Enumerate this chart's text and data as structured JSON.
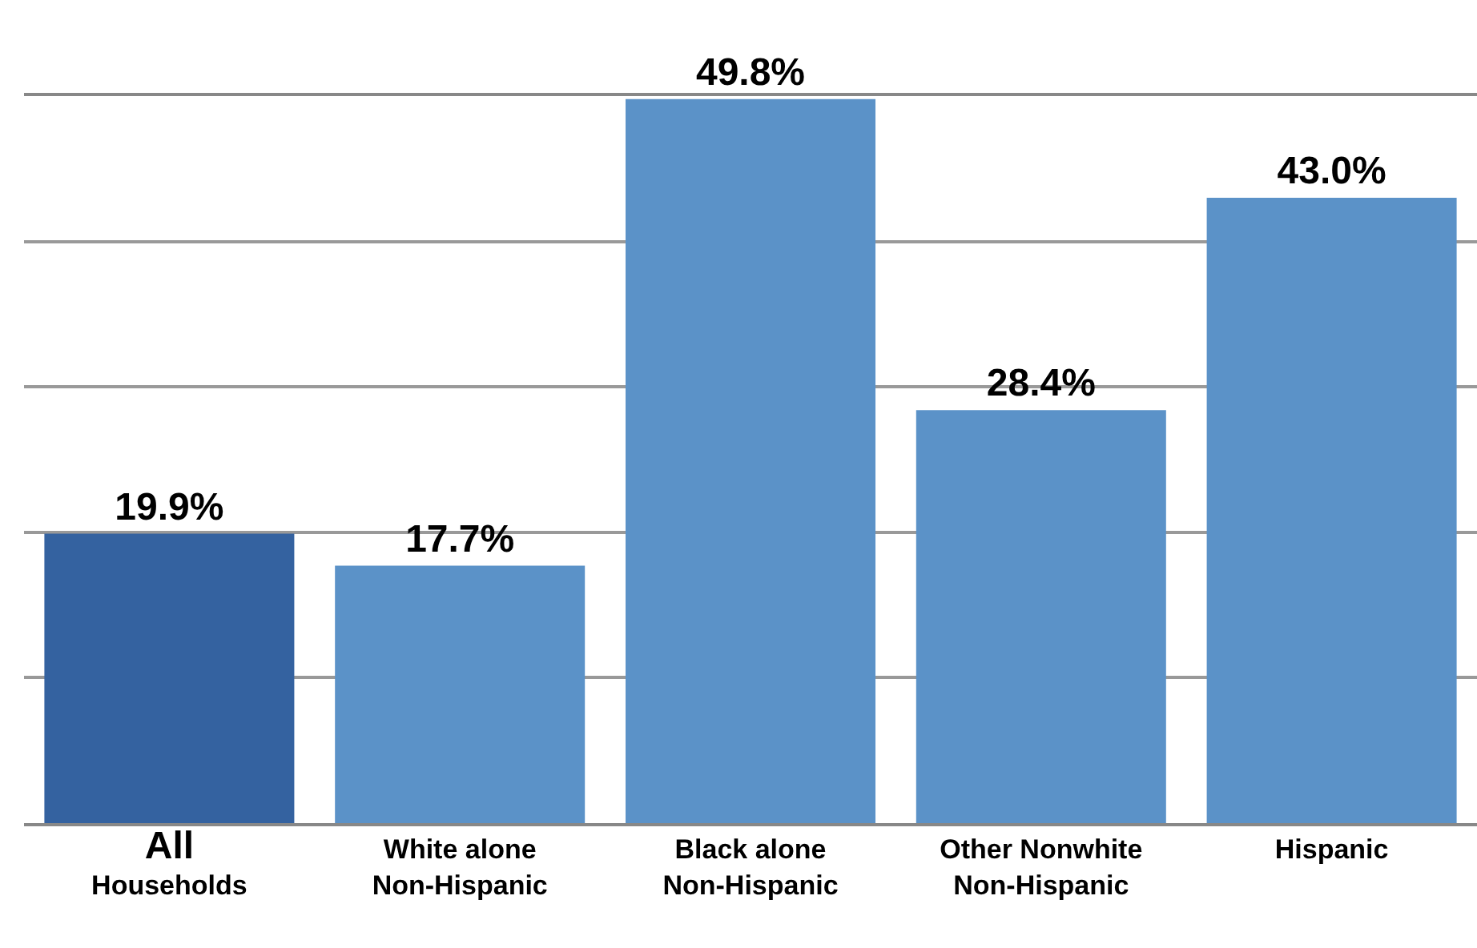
{
  "chart_data": {
    "type": "bar",
    "categories": [
      "All\nHouseholds",
      "White alone\nNon-Hispanic",
      "Black alone\nNon-Hispanic",
      "Other Nonwhite\nNon-Hispanic",
      "Hispanic"
    ],
    "values": [
      19.9,
      17.7,
      49.8,
      28.4,
      43.0
    ],
    "value_labels": [
      "19.9%",
      "17.7%",
      "49.8%",
      "28.4%",
      "43.0%"
    ],
    "colors": [
      "#3462a0",
      "#5b92c8",
      "#5b92c8",
      "#5b92c8",
      "#5b92c8"
    ],
    "ylim": [
      0,
      50
    ],
    "yticks": [
      {
        "value": 0,
        "label": null
      },
      {
        "value": 10,
        "label": null
      },
      {
        "value": 20,
        "label": null
      },
      {
        "value": 30,
        "label": null
      },
      {
        "value": 40,
        "label": null
      },
      {
        "value": 50,
        "label": null
      }
    ],
    "tick_labels": "x",
    "grid": "y",
    "legend": false
  }
}
